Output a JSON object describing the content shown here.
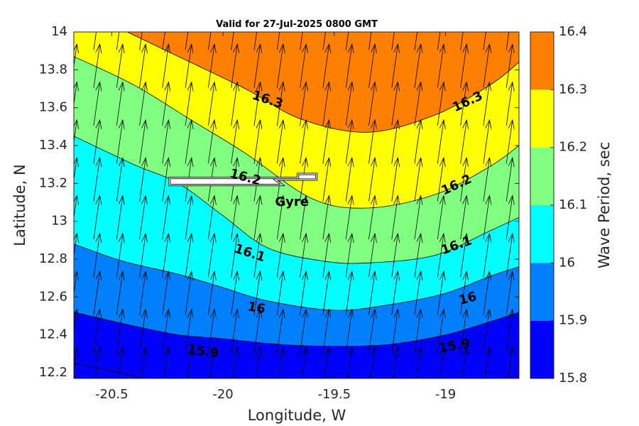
{
  "chart_data": {
    "type": "contourf",
    "title": "Valid for 27-Jul-2025 0800 GMT",
    "xlabel": "Longitude, W",
    "ylabel": "Latitude, N",
    "xlim": [
      -20.67,
      -18.67
    ],
    "ylim": [
      12.17,
      14.0
    ],
    "x_ticks": [
      -20.5,
      -20,
      -19.5,
      -19
    ],
    "x_tick_labels": [
      "-20.5",
      "-20",
      "-19.5",
      "-19"
    ],
    "y_ticks": [
      14,
      13.8,
      13.6,
      13.4,
      13.2,
      13,
      12.8,
      12.6,
      12.4,
      12.2
    ],
    "y_tick_labels": [
      "14",
      "13.8",
      "13.6",
      "13.4",
      "13.2",
      "13",
      "12.8",
      "12.6",
      "12.4",
      "12.2"
    ],
    "colorbar": {
      "label": "Wave Period, sec",
      "min": 15.8,
      "max": 16.4,
      "tick_values": [
        16.4,
        16.3,
        16.2,
        16.1,
        16,
        15.9,
        15.8
      ],
      "tick_labels": [
        "16.4",
        "16.3",
        "16.2",
        "16.1",
        "16",
        "15.9",
        "15.8"
      ]
    },
    "levels": [
      {
        "value": 15.8,
        "color": "#0000ff"
      },
      {
        "value": 15.9,
        "color": "#0080ff"
      },
      {
        "value": 16.0,
        "color": "#00ffff"
      },
      {
        "value": 16.1,
        "color": "#80ff80"
      },
      {
        "value": 16.2,
        "color": "#ffff00"
      },
      {
        "value": 16.3,
        "color": "#ff8000"
      }
    ],
    "contours": [
      {
        "level": 16.3,
        "points": [
          [
            -20.43,
            14.0
          ],
          [
            -20.2,
            13.87
          ],
          [
            -19.9,
            13.7
          ],
          [
            -19.65,
            13.54
          ],
          [
            -19.35,
            13.47
          ],
          [
            -19.05,
            13.56
          ],
          [
            -18.8,
            13.72
          ],
          [
            -18.67,
            13.84
          ]
        ]
      },
      {
        "level": 16.2,
        "points": [
          [
            -20.67,
            13.87
          ],
          [
            -20.4,
            13.72
          ],
          [
            -20.15,
            13.54
          ],
          [
            -19.9,
            13.36
          ],
          [
            -19.6,
            13.12
          ],
          [
            -19.35,
            13.07
          ],
          [
            -19.05,
            13.14
          ],
          [
            -18.8,
            13.29
          ],
          [
            -18.67,
            13.4
          ]
        ]
      },
      {
        "level": 16.1,
        "points": [
          [
            -20.67,
            13.45
          ],
          [
            -20.4,
            13.3
          ],
          [
            -20.2,
            13.2
          ],
          [
            -20.0,
            13.03
          ],
          [
            -19.8,
            12.86
          ],
          [
            -19.55,
            12.79
          ],
          [
            -19.35,
            12.78
          ],
          [
            -19.05,
            12.82
          ],
          [
            -18.8,
            12.95
          ],
          [
            -18.67,
            13.02
          ]
        ]
      },
      {
        "level": 16.0,
        "points": [
          [
            -20.67,
            12.88
          ],
          [
            -20.45,
            12.79
          ],
          [
            -20.2,
            12.72
          ],
          [
            -20.0,
            12.65
          ],
          [
            -19.8,
            12.58
          ],
          [
            -19.5,
            12.53
          ],
          [
            -19.25,
            12.56
          ],
          [
            -19.0,
            12.62
          ],
          [
            -18.8,
            12.71
          ],
          [
            -18.67,
            12.76
          ]
        ]
      },
      {
        "level": 15.9,
        "points": [
          [
            -20.67,
            12.52
          ],
          [
            -20.45,
            12.46
          ],
          [
            -20.2,
            12.4
          ],
          [
            -20.0,
            12.38
          ],
          [
            -19.75,
            12.35
          ],
          [
            -19.5,
            12.34
          ],
          [
            -19.25,
            12.35
          ],
          [
            -19.0,
            12.4
          ],
          [
            -18.8,
            12.47
          ],
          [
            -18.67,
            12.52
          ]
        ]
      },
      {
        "level": 15.8,
        "points": [
          [
            -20.67,
            12.25
          ],
          [
            -20.5,
            12.21
          ],
          [
            -20.35,
            12.17
          ]
        ]
      }
    ],
    "contour_labels": [
      {
        "text": "16.3",
        "x": -19.8,
        "y": 13.64,
        "angle": 18
      },
      {
        "text": "16.3",
        "x": -18.9,
        "y": 13.63,
        "angle": -25
      },
      {
        "text": "16.2",
        "x": -19.9,
        "y": 13.23,
        "angle": 15
      },
      {
        "text": "16.2",
        "x": -18.95,
        "y": 13.19,
        "angle": -25
      },
      {
        "text": "16.1",
        "x": -19.88,
        "y": 12.83,
        "angle": 18
      },
      {
        "text": "16.1",
        "x": -18.95,
        "y": 12.87,
        "angle": -20
      },
      {
        "text": "16",
        "x": -19.85,
        "y": 12.54,
        "angle": 10
      },
      {
        "text": "16",
        "x": -18.9,
        "y": 12.59,
        "angle": -15
      },
      {
        "text": "15.9",
        "x": -20.09,
        "y": 12.31,
        "angle": 8
      },
      {
        "text": "15.9",
        "x": -18.96,
        "y": 12.34,
        "angle": -10
      }
    ],
    "vector_field": {
      "direction_deg": 8,
      "x_start": -20.67,
      "x_step": 0.103,
      "y_start": 12.22,
      "y_step": 0.2
    },
    "gyre": {
      "label": "Gyre",
      "label_x": -19.69,
      "label_y": 13.1,
      "arrow_start": [
        -20.24,
        13.21
      ],
      "arrow_end": [
        -19.58,
        13.25
      ]
    }
  }
}
